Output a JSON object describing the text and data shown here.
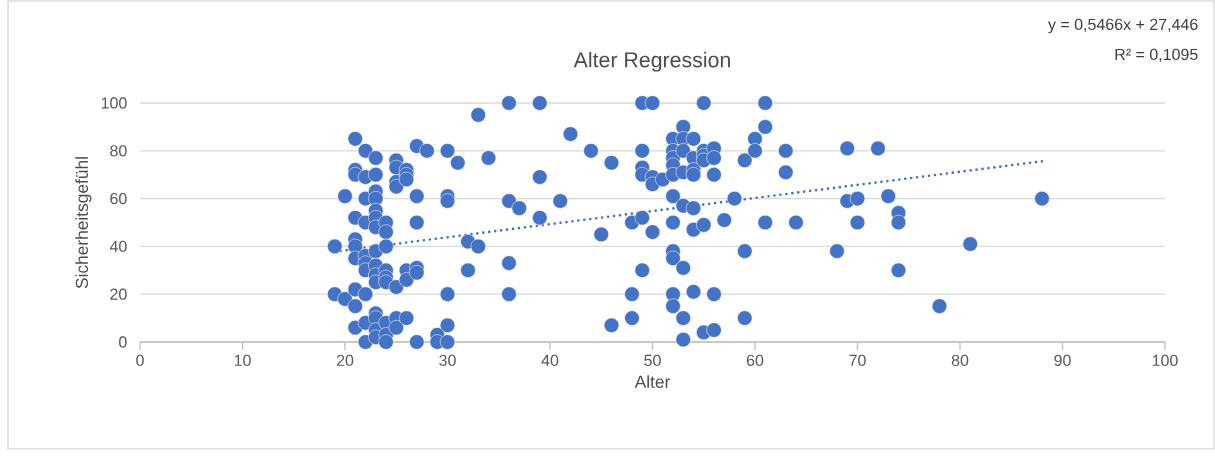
{
  "chart_data": {
    "type": "scatter",
    "title": "Alter Regression",
    "xlabel": "Alter",
    "ylabel": "Sicherheitsgefühl",
    "annotations": [
      "y = 0,5466x + 27,446",
      "R² = 0,1095"
    ],
    "xlim": [
      0,
      100
    ],
    "ylim": [
      0,
      100
    ],
    "xticks": [
      0,
      10,
      20,
      30,
      40,
      50,
      60,
      70,
      80,
      90,
      100
    ],
    "yticks": [
      0,
      20,
      40,
      60,
      80,
      100
    ],
    "grid": "y",
    "series": [
      {
        "marker": "circle",
        "color": "#4472c4",
        "x": [
          19,
          19,
          20,
          20,
          21,
          21,
          21,
          21,
          21,
          21,
          21,
          21,
          21,
          21,
          22,
          22,
          22,
          22,
          22,
          22,
          22,
          22,
          22,
          22,
          23,
          23,
          23,
          23,
          23,
          23,
          23,
          23,
          23,
          23,
          23,
          23,
          23,
          23,
          23,
          24,
          24,
          24,
          24,
          24,
          24,
          24,
          24,
          24,
          25,
          25,
          25,
          25,
          25,
          25,
          25,
          26,
          26,
          26,
          26,
          26,
          26,
          27,
          27,
          27,
          27,
          27,
          27,
          28,
          29,
          29,
          30,
          30,
          30,
          30,
          30,
          30,
          31,
          32,
          32,
          33,
          33,
          34,
          36,
          36,
          36,
          36,
          37,
          39,
          39,
          39,
          41,
          42,
          44,
          45,
          46,
          46,
          48,
          48,
          48,
          49,
          49,
          49,
          49,
          49,
          49,
          50,
          50,
          50,
          50,
          51,
          52,
          52,
          52,
          52,
          52,
          52,
          52,
          52,
          52,
          52,
          52,
          53,
          53,
          53,
          53,
          53,
          53,
          53,
          53,
          54,
          54,
          54,
          54,
          54,
          54,
          54,
          55,
          55,
          55,
          55,
          55,
          55,
          56,
          56,
          56,
          56,
          56,
          57,
          58,
          59,
          59,
          59,
          60,
          60,
          61,
          61,
          61,
          63,
          63,
          64,
          68,
          69,
          69,
          70,
          70,
          72,
          73,
          74,
          74,
          74,
          78,
          81,
          88
        ],
        "values": [
          40,
          20,
          61,
          18,
          85,
          72,
          70,
          52,
          43,
          40,
          35,
          22,
          15,
          6,
          80,
          69,
          60,
          50,
          36,
          33,
          30,
          20,
          8,
          0,
          77,
          70,
          63,
          60,
          55,
          52,
          48,
          38,
          32,
          28,
          25,
          12,
          10,
          5,
          2,
          50,
          46,
          40,
          30,
          27,
          25,
          8,
          3,
          0,
          76,
          73,
          67,
          65,
          23,
          10,
          6,
          72,
          70,
          68,
          30,
          26,
          10,
          82,
          61,
          50,
          31,
          29,
          0,
          80,
          3,
          0,
          80,
          61,
          59,
          20,
          7,
          0,
          75,
          42,
          30,
          95,
          40,
          77,
          100,
          59,
          33,
          20,
          56,
          100,
          69,
          52,
          59,
          87,
          80,
          45,
          75,
          7,
          50,
          20,
          10,
          100,
          80,
          73,
          70,
          52,
          30,
          100,
          69,
          66,
          46,
          68,
          85,
          80,
          77,
          74,
          70,
          61,
          50,
          38,
          35,
          20,
          15,
          90,
          85,
          80,
          71,
          57,
          31,
          10,
          1,
          85,
          77,
          72,
          70,
          56,
          47,
          21,
          100,
          80,
          78,
          76,
          49,
          4,
          81,
          77,
          70,
          20,
          5,
          51,
          60,
          76,
          38,
          10,
          85,
          80,
          100,
          90,
          50,
          80,
          71,
          50,
          38,
          81,
          59,
          60,
          50,
          81,
          61,
          54,
          50,
          30,
          15,
          41,
          60
        ]
      },
      {
        "type": "line",
        "marker": "none",
        "color": "#4472c4",
        "line_style": "dotted",
        "x": [
          19,
          88
        ],
        "values": [
          37.8,
          75.6
        ]
      }
    ]
  }
}
